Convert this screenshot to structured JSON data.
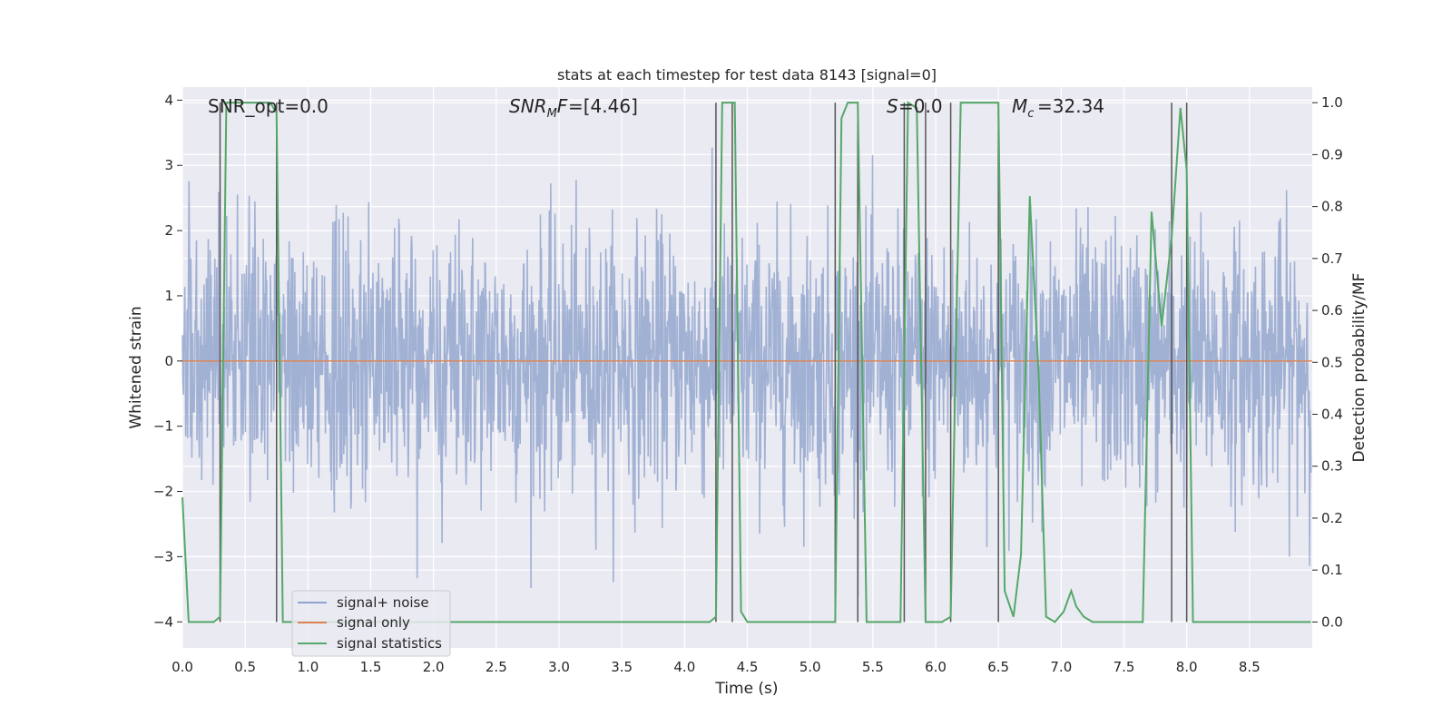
{
  "chart_data": {
    "type": "line",
    "title": "stats at each timestep for test data 8143 [signal=0]",
    "xlabel": "Time (s)",
    "ylabel_left": "Whitened strain",
    "ylabel_right": "Detection probability/MF",
    "xlim": [
      0.0,
      9.0
    ],
    "ylim_left": [
      -4.4,
      4.2
    ],
    "ylim_right": [
      -0.05,
      1.03
    ],
    "x_ticks": [
      "0.0",
      "0.5",
      "1.0",
      "1.5",
      "2.0",
      "2.5",
      "3.0",
      "3.5",
      "4.0",
      "4.5",
      "5.0",
      "5.5",
      "6.0",
      "6.5",
      "7.0",
      "7.5",
      "8.0",
      "8.5"
    ],
    "y_ticks_left": [
      "−4",
      "−3",
      "−2",
      "−1",
      "0",
      "1",
      "2",
      "3",
      "4"
    ],
    "y_ticks_right": [
      "0.0",
      "0.1",
      "0.2",
      "0.3",
      "0.4",
      "0.5",
      "0.6",
      "0.7",
      "0.8",
      "0.9",
      "1.0"
    ],
    "grid": true,
    "legend_position": "lower-left",
    "annotations": {
      "snr_opt": "SNR_opt=0.0",
      "snr_mf": "=[4.46]",
      "s_value": "=0.0",
      "mc_value": "=32.34"
    },
    "series": [
      {
        "name": "signal+ noise",
        "color": "#8fa3cc",
        "kind": "noise",
        "amplitude_sigma": 1.0,
        "clip": [
          -3.6,
          3.4
        ]
      },
      {
        "name": "signal only",
        "color": "#dd8452",
        "kind": "constant",
        "value": 0.0
      },
      {
        "name": "signal statistics",
        "color": "#55a868",
        "x": [
          0.0,
          0.05,
          0.15,
          0.25,
          0.3,
          0.35,
          0.4,
          0.5,
          0.6,
          0.7,
          0.75,
          0.8,
          0.9,
          1.0,
          1.5,
          2.0,
          2.5,
          3.0,
          3.5,
          4.0,
          4.2,
          4.25,
          4.3,
          4.35,
          4.4,
          4.45,
          4.5,
          5.0,
          5.15,
          5.2,
          5.25,
          5.3,
          5.38,
          5.45,
          5.5,
          5.55,
          5.65,
          5.72,
          5.78,
          5.85,
          5.92,
          5.98,
          6.05,
          6.12,
          6.2,
          6.3,
          6.5,
          6.55,
          6.62,
          6.68,
          6.75,
          6.82,
          6.88,
          6.95,
          7.02,
          7.08,
          7.12,
          7.18,
          7.25,
          7.4,
          7.6,
          7.65,
          7.72,
          7.8,
          7.88,
          7.95,
          8.0,
          8.05,
          8.5,
          8.99
        ],
        "values": [
          0.24,
          0.0,
          0.0,
          0.0,
          0.01,
          1.0,
          1.0,
          1.0,
          1.0,
          1.0,
          0.98,
          0.0,
          0.0,
          0.0,
          0.0,
          0.0,
          0.0,
          0.0,
          0.0,
          0.0,
          0.0,
          0.01,
          1.0,
          1.0,
          1.0,
          0.02,
          0.0,
          0.0,
          0.0,
          0.0,
          0.97,
          1.0,
          1.0,
          0.0,
          0.0,
          0.0,
          0.0,
          0.0,
          1.0,
          0.99,
          0.0,
          0.0,
          0.0,
          0.01,
          1.0,
          1.0,
          1.0,
          0.06,
          0.01,
          0.13,
          0.82,
          0.48,
          0.01,
          0.0,
          0.02,
          0.06,
          0.03,
          0.01,
          0.0,
          0.0,
          0.0,
          0.0,
          0.79,
          0.57,
          0.74,
          0.99,
          0.87,
          0.0,
          0.0,
          0.0
        ]
      }
    ],
    "vertical_markers": [
      0.3,
      0.75,
      4.25,
      4.38,
      5.2,
      5.38,
      5.75,
      5.92,
      6.12,
      6.5,
      7.88,
      8.0
    ]
  }
}
